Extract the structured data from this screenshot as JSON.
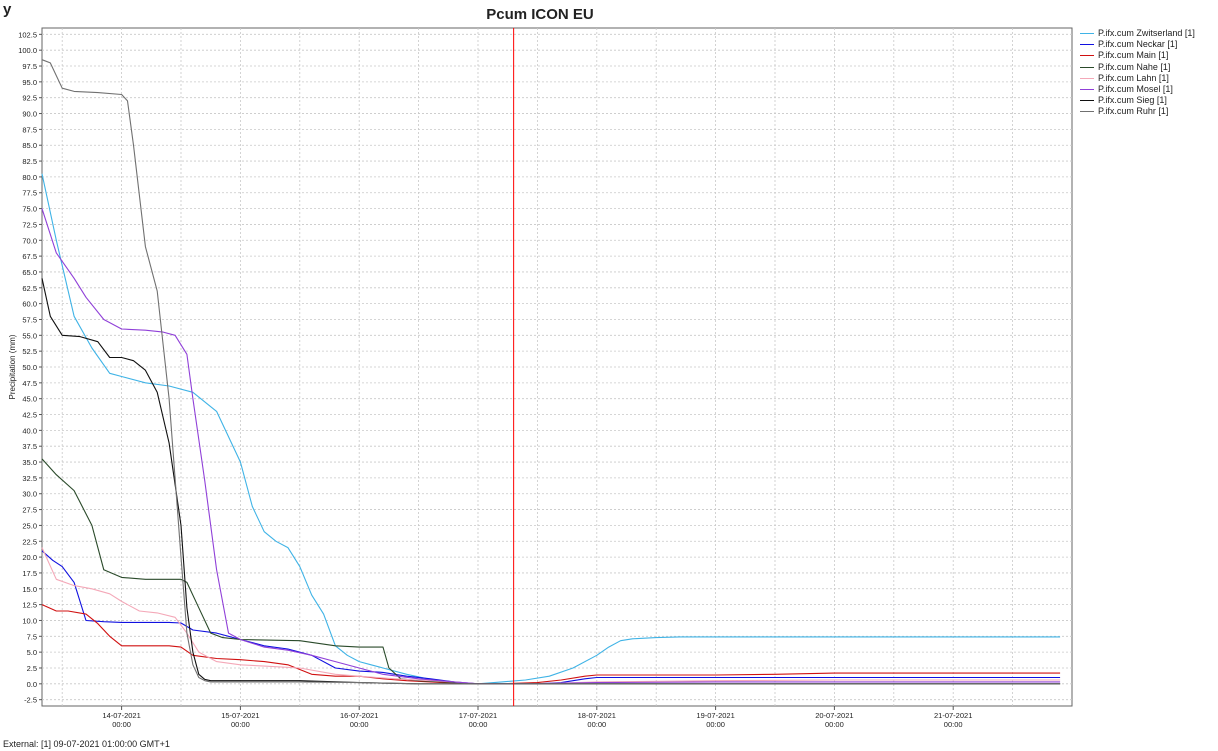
{
  "corner_glyph": "y",
  "footer_text": "External: [1] 09-07-2021 01:00:00 GMT+1",
  "colors": {
    "grid": "#c8c8c8",
    "current_time_line": "#ff0000",
    "axis": "#555555"
  },
  "chart_data": {
    "type": "line",
    "title": "Pcum ICON EU",
    "ylabel": "Precipitation (mm)",
    "xlabel": "",
    "ylim": [
      -3.5,
      103.5
    ],
    "xlim": [
      13.33,
      22.0
    ],
    "grid": true,
    "legend_placement": "right",
    "x_ticks": [
      {
        "x": 14.0,
        "date": "14-07-2021",
        "time": "00:00"
      },
      {
        "x": 15.0,
        "date": "15-07-2021",
        "time": "00:00"
      },
      {
        "x": 16.0,
        "date": "16-07-2021",
        "time": "00:00"
      },
      {
        "x": 17.0,
        "date": "17-07-2021",
        "time": "00:00"
      },
      {
        "x": 18.0,
        "date": "18-07-2021",
        "time": "00:00"
      },
      {
        "x": 19.0,
        "date": "19-07-2021",
        "time": "00:00"
      },
      {
        "x": 20.0,
        "date": "20-07-2021",
        "time": "00:00"
      },
      {
        "x": 21.0,
        "date": "21-07-2021",
        "time": "00:00"
      }
    ],
    "y_ticks": [
      "-2.5",
      "0.0",
      "2.5",
      "5.0",
      "7.5",
      "10.0",
      "12.5",
      "15.0",
      "17.5",
      "20.0",
      "22.5",
      "25.0",
      "27.5",
      "30.0",
      "32.5",
      "35.0",
      "37.5",
      "40.0",
      "42.5",
      "45.0",
      "47.5",
      "50.0",
      "52.5",
      "55.0",
      "57.5",
      "60.0",
      "62.5",
      "65.0",
      "67.5",
      "70.0",
      "72.5",
      "75.0",
      "77.5",
      "80.0",
      "82.5",
      "85.0",
      "87.5",
      "90.0",
      "92.5",
      "95.0",
      "97.5",
      "100.0",
      "102.5"
    ],
    "current_time_x": 17.3,
    "series": [
      {
        "name": "P.ifx.cum Zwitserland [1]",
        "color": "#3fb3e6",
        "x": [
          13.33,
          13.45,
          13.6,
          13.75,
          13.9,
          14.0,
          14.2,
          14.4,
          14.6,
          14.8,
          15.0,
          15.1,
          15.2,
          15.3,
          15.4,
          15.5,
          15.6,
          15.7,
          15.8,
          15.9,
          16.0,
          16.1,
          16.2,
          16.4,
          16.6,
          16.8,
          17.0,
          17.2,
          17.4,
          17.6,
          17.8,
          18.0,
          18.1,
          18.2,
          18.3,
          18.5,
          18.7,
          19.0,
          20.0,
          21.0,
          21.9
        ],
        "y": [
          80.5,
          70,
          58,
          53,
          49,
          48.5,
          47.5,
          47,
          46,
          43,
          35,
          28,
          24,
          22.5,
          21.5,
          18.5,
          14,
          11,
          6,
          4.5,
          3.5,
          3,
          2.5,
          1.5,
          0.7,
          0.2,
          0,
          0.3,
          0.6,
          1.2,
          2.5,
          4.5,
          5.8,
          6.8,
          7.1,
          7.3,
          7.4,
          7.4,
          7.4,
          7.4,
          7.4
        ]
      },
      {
        "name": "P.ifx.cum Neckar [1]",
        "color": "#1010e0",
        "x": [
          13.33,
          13.42,
          13.5,
          13.6,
          13.7,
          13.85,
          14.0,
          14.2,
          14.4,
          14.5,
          14.6,
          14.8,
          15.0,
          15.2,
          15.4,
          15.6,
          15.8,
          16.0,
          16.2,
          16.4,
          16.6,
          16.8,
          17.0,
          17.3,
          17.5,
          17.7,
          17.9,
          18.0,
          19.0,
          20.0,
          21.0,
          21.9
        ],
        "y": [
          21,
          19.5,
          18.5,
          16,
          10,
          9.8,
          9.7,
          9.7,
          9.7,
          9.6,
          8.5,
          8,
          7,
          6,
          5.5,
          4.5,
          2.5,
          2,
          1.8,
          1.2,
          0.8,
          0.3,
          0,
          0,
          0,
          0.2,
          0.8,
          1,
          1,
          1,
          1,
          1
        ]
      },
      {
        "name": "P.ifx.cum Main [1]",
        "color": "#d01010",
        "x": [
          13.33,
          13.45,
          13.55,
          13.7,
          13.8,
          13.9,
          14.0,
          14.2,
          14.4,
          14.5,
          14.6,
          14.8,
          15.0,
          15.2,
          15.4,
          15.6,
          15.8,
          16.0,
          16.2,
          16.4,
          16.6,
          16.8,
          17.0,
          17.2,
          17.5,
          17.7,
          17.9,
          18.0,
          19.0,
          19.5,
          20.0,
          21.0,
          21.9
        ],
        "y": [
          12.5,
          11.5,
          11.5,
          11,
          9.5,
          7.5,
          6,
          6,
          6,
          5.8,
          4.5,
          4,
          3.8,
          3.5,
          3,
          1.5,
          1.2,
          1.2,
          0.8,
          0.5,
          0.3,
          0.1,
          0,
          0,
          0.2,
          0.6,
          1.2,
          1.4,
          1.4,
          1.5,
          1.7,
          1.7,
          1.7
        ]
      },
      {
        "name": "P.ifx.cum Nahe [1]",
        "color": "#2a4a2a",
        "x": [
          13.33,
          13.45,
          13.6,
          13.75,
          13.85,
          14.0,
          14.2,
          14.5,
          14.55,
          14.65,
          14.75,
          14.85,
          15.0,
          15.5,
          15.8,
          16.0,
          16.2,
          16.25,
          16.35,
          16.5,
          16.7,
          17.0,
          17.5,
          18.0,
          19.0,
          20.0,
          21.0,
          21.9
        ],
        "y": [
          35.5,
          33,
          30.5,
          25,
          18,
          16.8,
          16.5,
          16.5,
          16,
          12,
          8,
          7.3,
          7,
          6.8,
          6,
          5.8,
          5.8,
          2.5,
          0.8,
          0.5,
          0.3,
          0,
          0,
          0,
          0,
          0,
          0,
          0
        ]
      },
      {
        "name": "P.ifx.cum Lahn [1]",
        "color": "#f4a8b8",
        "x": [
          13.33,
          13.45,
          13.6,
          13.75,
          13.9,
          14.0,
          14.15,
          14.3,
          14.45,
          14.55,
          14.65,
          14.8,
          15.0,
          15.2,
          15.5,
          15.8,
          16.0,
          16.3,
          16.6,
          16.8,
          17.0,
          17.5,
          18.0,
          19.0,
          20.0,
          21.0,
          21.9
        ],
        "y": [
          21.5,
          16.5,
          15.5,
          15,
          14.2,
          13,
          11.5,
          11.2,
          10.5,
          8,
          5,
          3.5,
          3,
          2.8,
          2.5,
          1.5,
          1.2,
          0.8,
          0.5,
          0.3,
          0,
          0,
          0.3,
          0.5,
          0.6,
          0.6,
          0.6
        ]
      },
      {
        "name": "P.ifx.cum Mosel [1]",
        "color": "#9040d8",
        "x": [
          13.33,
          13.45,
          13.6,
          13.7,
          13.85,
          14.0,
          14.2,
          14.35,
          14.45,
          14.55,
          14.6,
          14.7,
          14.8,
          14.9,
          15.0,
          15.2,
          15.4,
          15.6,
          15.8,
          16.0,
          16.2,
          16.5,
          16.8,
          17.0,
          17.5,
          18.0,
          19.0,
          20.0,
          21.0,
          21.9
        ],
        "y": [
          75,
          68,
          64,
          61,
          57.5,
          56,
          55.8,
          55.5,
          55,
          52,
          45,
          32,
          18,
          8,
          7,
          5.8,
          5.3,
          4.5,
          3.5,
          2.5,
          1.5,
          0.8,
          0.3,
          0,
          0,
          0.2,
          0.3,
          0.3,
          0.3,
          0.3
        ]
      },
      {
        "name": "P.ifx.cum Sieg [1]",
        "color": "#101010",
        "x": [
          13.33,
          13.4,
          13.5,
          13.65,
          13.8,
          13.9,
          14.0,
          14.1,
          14.2,
          14.3,
          14.4,
          14.5,
          14.55,
          14.6,
          14.65,
          14.7,
          14.75,
          14.8,
          14.9,
          15.0,
          15.5,
          16.0,
          16.5,
          17.0,
          17.5,
          18.0,
          19.0,
          20.0,
          21.0,
          21.9
        ],
        "y": [
          64,
          58,
          55,
          54.8,
          54,
          51.5,
          51.5,
          51,
          49.5,
          46,
          38,
          25,
          12,
          5,
          1.5,
          0.7,
          0.5,
          0.5,
          0.5,
          0.5,
          0.5,
          0.2,
          0,
          0,
          0,
          0,
          0,
          0,
          0,
          0
        ]
      },
      {
        "name": "P.ifx.cum Ruhr [1]",
        "color": "#707070",
        "x": [
          13.33,
          13.4,
          13.5,
          13.6,
          13.8,
          14.0,
          14.05,
          14.1,
          14.2,
          14.3,
          14.4,
          14.5,
          14.55,
          14.6,
          14.65,
          14.7,
          14.75,
          14.8,
          14.9,
          15.0,
          15.5,
          16.0,
          16.5,
          17.0,
          17.5,
          18.0,
          19.0,
          20.0,
          21.0,
          21.9
        ],
        "y": [
          98.5,
          98,
          94,
          93.5,
          93.3,
          93,
          92,
          85,
          69,
          62,
          45,
          20,
          8,
          3,
          1,
          0.5,
          0.3,
          0.3,
          0.3,
          0.3,
          0.3,
          0.2,
          0,
          0,
          0,
          0,
          0,
          0,
          0,
          0
        ]
      }
    ]
  }
}
